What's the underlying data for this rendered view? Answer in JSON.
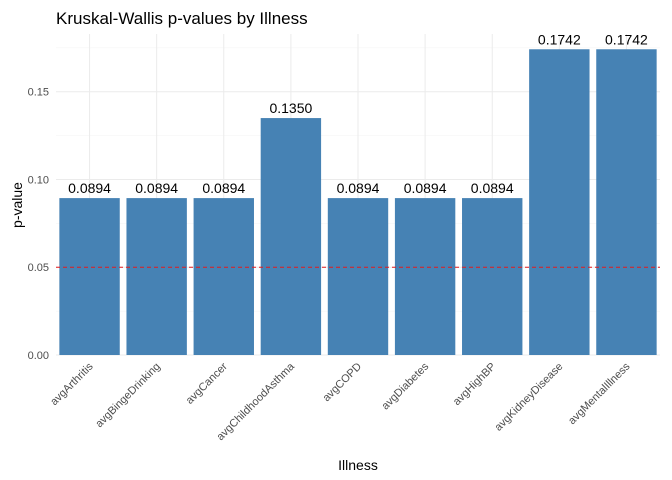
{
  "chart_data": {
    "type": "bar",
    "title": "Kruskal-Wallis p-values by Illness",
    "xlabel": "Illness",
    "ylabel": "p-value",
    "categories": [
      "avgArthritis",
      "avgBingeDrinking",
      "avgCancer",
      "avgChildhoodAsthma",
      "avgCOPD",
      "avgDiabetes",
      "avgHighBP",
      "avgKidneyDisease",
      "avgMentalIllness"
    ],
    "values": [
      0.0894,
      0.0894,
      0.0894,
      0.135,
      0.0894,
      0.0894,
      0.0894,
      0.1742,
      0.1742
    ],
    "value_labels": [
      "0.0894",
      "0.0894",
      "0.0894",
      "0.1350",
      "0.0894",
      "0.0894",
      "0.0894",
      "0.1742",
      "0.1742"
    ],
    "yticks": [
      0.0,
      0.05,
      0.1,
      0.15
    ],
    "ytick_labels": [
      "0.00",
      "0.05",
      "0.10",
      "0.15"
    ],
    "ylim": [
      0,
      0.1829
    ],
    "reference_line": {
      "value": 0.05,
      "style": "dashed",
      "color": "#e41a1c"
    },
    "bar_color": "#4682b4",
    "grid": true,
    "legend": "none"
  }
}
